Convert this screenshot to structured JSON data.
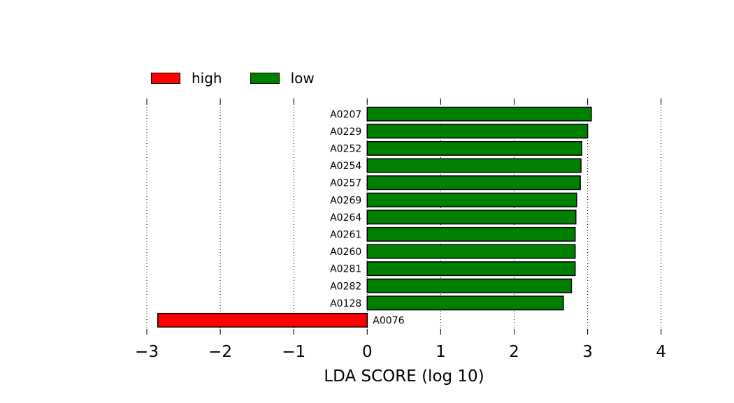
{
  "chart_data": {
    "type": "bar",
    "orientation": "horizontal",
    "xlabel": "LDA SCORE (log 10)",
    "xlim": [
      -3,
      4
    ],
    "xticks": [
      -3,
      -2,
      -1,
      0,
      1,
      2,
      3,
      4
    ],
    "xtick_labels": [
      "−3",
      "−2",
      "−1",
      "0",
      "1",
      "2",
      "3",
      "4"
    ],
    "grid": "vertical dotted",
    "legend_position": "top-left",
    "categories": [
      "A0207",
      "A0229",
      "A0252",
      "A0254",
      "A0257",
      "A0269",
      "A0264",
      "A0261",
      "A0260",
      "A0281",
      "A0282",
      "A0128",
      "A0076"
    ],
    "values": [
      3.05,
      3.0,
      2.92,
      2.91,
      2.9,
      2.85,
      2.84,
      2.83,
      2.83,
      2.83,
      2.78,
      2.67,
      -2.85
    ],
    "groups": [
      "low",
      "low",
      "low",
      "low",
      "low",
      "low",
      "low",
      "low",
      "low",
      "low",
      "low",
      "low",
      "high"
    ],
    "series": [
      {
        "name": "high",
        "color": "#ff0000"
      },
      {
        "name": "low",
        "color": "#008000"
      }
    ]
  }
}
